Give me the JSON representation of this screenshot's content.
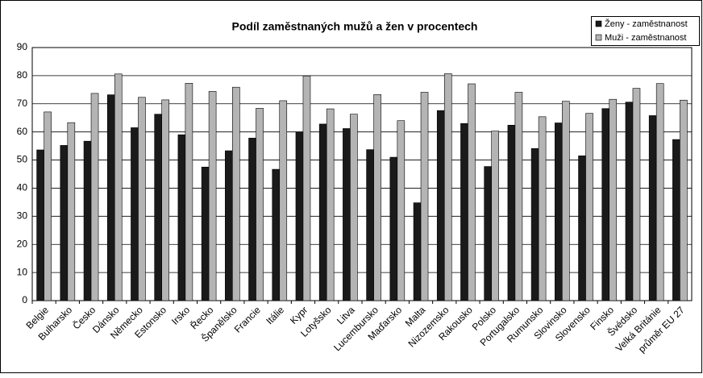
{
  "chart_data": {
    "type": "bar",
    "title": "Podíl zaměstnaných mužů a žen v procentech",
    "categories": [
      "Belgie",
      "Bulharsko",
      "Česko",
      "Dánsko",
      "Německo",
      "Estonsko",
      "Irsko",
      "Řecko",
      "Španělsko",
      "Francie",
      "Itálie",
      "Kypr",
      "Lotyšsko",
      "Litva",
      "Lucembursko",
      "Maďarsko",
      "Malta",
      "Nizozemsko",
      "Rakousko",
      "Polsko",
      "Portugalsko",
      "Rumunsko",
      "Slovinsko",
      "Slovensko",
      "Finsko",
      "Švédsko",
      "Velká Británie",
      "průměr EU 27"
    ],
    "series": [
      {
        "name": "Ženy - zaměstnanost",
        "color": "#1a1a1a",
        "values": [
          53.6,
          55.2,
          56.7,
          73.2,
          61.5,
          66.3,
          59.0,
          47.5,
          53.3,
          57.8,
          46.7,
          60.0,
          62.8,
          61.2,
          53.7,
          51.0,
          34.8,
          67.6,
          63.0,
          47.7,
          62.4,
          54.1,
          63.2,
          51.5,
          68.3,
          70.6,
          65.8,
          57.3
        ]
      },
      {
        "name": "Muži - zaměstnanost",
        "color": "#b4b4b4",
        "values": [
          67.1,
          63.3,
          73.7,
          80.6,
          72.3,
          71.4,
          77.3,
          74.4,
          75.9,
          68.4,
          71.1,
          79.9,
          68.2,
          66.3,
          73.3,
          64.0,
          74.1,
          80.7,
          77.1,
          60.3,
          74.1,
          65.4,
          70.9,
          66.6,
          71.6,
          75.5,
          77.2,
          71.3
        ]
      }
    ],
    "ylim": [
      0,
      90
    ],
    "yticks": [
      0,
      10,
      20,
      30,
      40,
      50,
      60,
      70,
      80,
      90
    ],
    "grid": true,
    "legend": "top-right"
  }
}
